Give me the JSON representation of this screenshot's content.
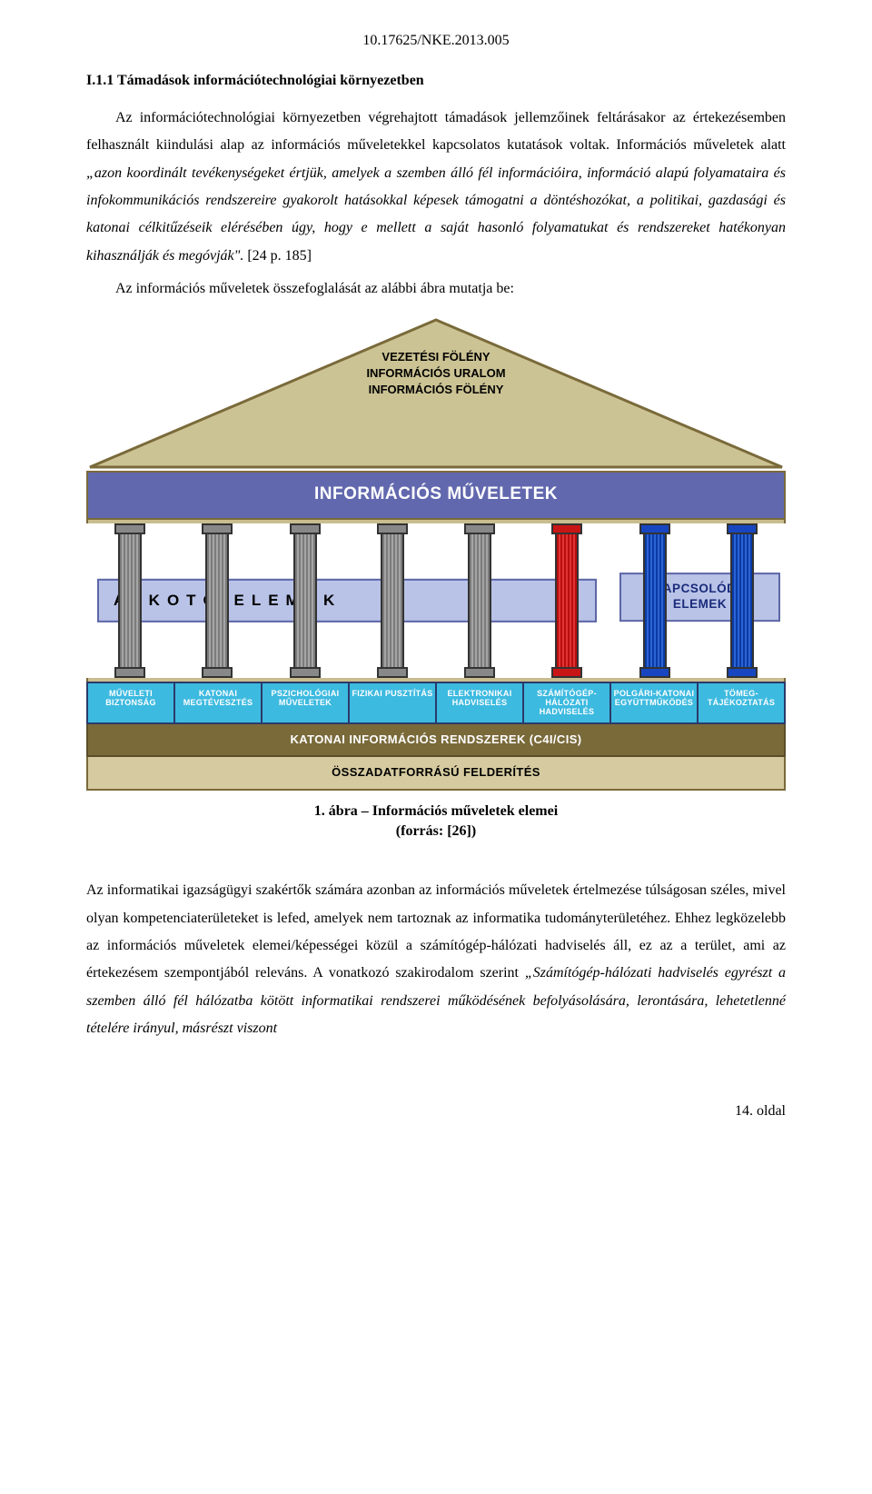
{
  "doc_id": "10.17625/NKE.2013.005",
  "heading": "I.1.1 Támadások információtechnológiai környezetben",
  "para1a": "Az információtechnológiai környezetben végrehajtott támadások jellemzőinek feltárásakor az értekezésemben felhasznált kiindulási alap az információs műveletekkel kapcsolatos kutatások voltak. Információs műveletek alatt ",
  "para1b": "„azon koordinált tevékenységeket értjük, amelyek a szemben álló fél információira, információ alapú folyamataira és infokommunikációs rendszereire gyakorolt hatásokkal képesek támogatni a döntéshozókat, a politikai, gazdasági és katonai célkitűzéseik elérésében úgy, hogy e mellett a saját hasonló folyamatukat és rendszereket hatékonyan kihasználják és megóvják\".",
  "para1c": " [24 p. 185]",
  "lead_in": "Az információs műveletek összefoglalását az alábbi ábra mutatja be:",
  "diagram": {
    "roof": {
      "line1": "VEZETÉSI FÖLÉNY",
      "line2": "INFORMÁCIÓS URALOM",
      "line3": "INFORMÁCIÓS FÖLÉNY",
      "fill": "#ccc394",
      "stroke": "#7a6a3a"
    },
    "entablature": "INFORMÁCIÓS MŰVELETEK",
    "pillars": {
      "count": 8,
      "colors": [
        "gray",
        "gray",
        "gray",
        "gray",
        "gray",
        "red",
        "blue",
        "blue"
      ]
    },
    "midlabel_left": "ALKOTÓ ELEMEK",
    "midlabel_right": "KAPCSOLÓDÓ ELEMEK",
    "base_cells": [
      "MŰVELETI BIZTONSÁG",
      "KATONAI MEGTÉVESZTÉS",
      "PSZICHOLÓGIAI MŰVELETEK",
      "FIZIKAI PUSZTÍTÁS",
      "ELEKTRONIKAI HADVISELÉS",
      "SZÁMÍTÓGÉP-HÁLÓZATI HADVISELÉS",
      "POLGÁRI-KATONAI EGYÜTTMŰKÖDÉS",
      "TÖMEG-TÁJÉKOZTATÁS"
    ],
    "bar_dark": "KATONAI INFORMÁCIÓS RENDSZEREK (C4I/CIS)",
    "bar_light": "ÖSSZADATFORRÁSÚ FELDERÍTÉS"
  },
  "caption_line1": "1. ábra – Információs műveletek elemei",
  "caption_line2": "(forrás: [26])",
  "para2a": "Az informatikai igazságügyi szakértők számára azonban az információs műveletek értelmezése túlságosan széles, mivel olyan kompetenciaterületeket is lefed, amelyek nem tartoznak az informatika tudományterületéhez. Ehhez legközelebb az információs műveletek elemei/képességei közül a számítógép-hálózati hadviselés áll, ez az a terület, ami az értekezésem szempontjából releváns. A vonatkozó szakirodalom szerint ",
  "para2b": "„Számítógép-hálózati hadviselés egyrészt a szemben álló fél hálózatba kötött informatikai rendszerei működésének befolyásolására, lerontására, lehetetlenné tételére irányul, másrészt viszont",
  "page_footer": "14. oldal"
}
